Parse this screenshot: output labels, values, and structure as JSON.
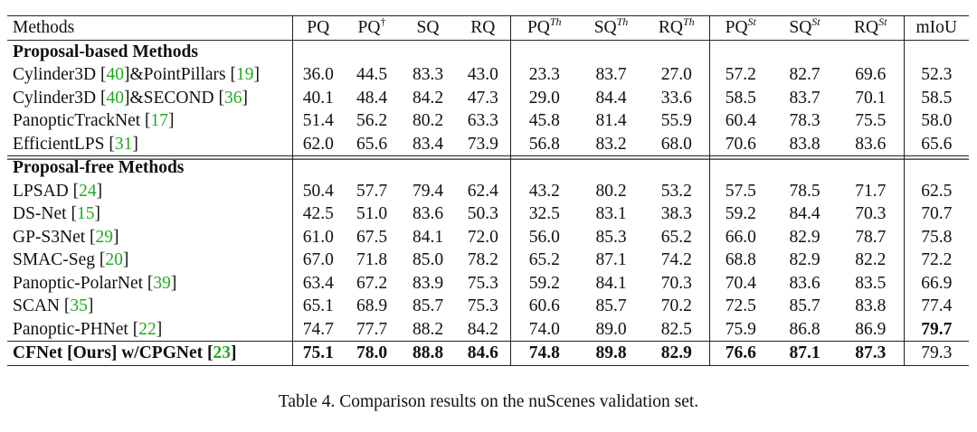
{
  "table": {
    "columns": [
      {
        "base": "Methods",
        "sup": ""
      },
      {
        "base": "PQ",
        "sup": ""
      },
      {
        "base": "PQ",
        "sup": "†"
      },
      {
        "base": "SQ",
        "sup": ""
      },
      {
        "base": "RQ",
        "sup": ""
      },
      {
        "base": "PQ",
        "sup": "Th"
      },
      {
        "base": "SQ",
        "sup": "Th"
      },
      {
        "base": "RQ",
        "sup": "Th"
      },
      {
        "base": "PQ",
        "sup": "St"
      },
      {
        "base": "SQ",
        "sup": "St"
      },
      {
        "base": "RQ",
        "sup": "St"
      },
      {
        "base": "mIoU",
        "sup": ""
      }
    ],
    "sections": [
      {
        "title": "Proposal-based Methods",
        "rows": [
          {
            "method": "Cylinder3D [",
            "cites": [
              "40",
              "19"
            ],
            "method_mid": "]&PointPillars [",
            "method_end": "]",
            "values": [
              "36.0",
              "44.5",
              "83.3",
              "43.0",
              "23.3",
              "83.7",
              "27.0",
              "57.2",
              "82.7",
              "69.6",
              "52.3"
            ]
          },
          {
            "method": "Cylinder3D [",
            "cites": [
              "40",
              "36"
            ],
            "method_mid": "]&SECOND [",
            "method_end": "]",
            "values": [
              "40.1",
              "48.4",
              "84.2",
              "47.3",
              "29.0",
              "84.4",
              "33.6",
              "58.5",
              "83.7",
              "70.1",
              "58.5"
            ]
          },
          {
            "method": "PanopticTrackNet [",
            "cites": [
              "17"
            ],
            "method_mid": "",
            "method_end": "]",
            "values": [
              "51.4",
              "56.2",
              "80.2",
              "63.3",
              "45.8",
              "81.4",
              "55.9",
              "60.4",
              "78.3",
              "75.5",
              "58.0"
            ]
          },
          {
            "method": "EfficientLPS [",
            "cites": [
              "31"
            ],
            "method_mid": "",
            "method_end": "]",
            "values": [
              "62.0",
              "65.6",
              "83.4",
              "73.9",
              "56.8",
              "83.2",
              "68.0",
              "70.6",
              "83.8",
              "83.6",
              "65.6"
            ]
          }
        ]
      },
      {
        "title": "Proposal-free Methods",
        "rows": [
          {
            "method": "LPSAD [",
            "cites": [
              "24"
            ],
            "method_mid": "",
            "method_end": "]",
            "values": [
              "50.4",
              "57.7",
              "79.4",
              "62.4",
              "43.2",
              "80.2",
              "53.2",
              "57.5",
              "78.5",
              "71.7",
              "62.5"
            ]
          },
          {
            "method": "DS-Net [",
            "cites": [
              "15"
            ],
            "method_mid": "",
            "method_end": "]",
            "values": [
              "42.5",
              "51.0",
              "83.6",
              "50.3",
              "32.5",
              "83.1",
              "38.3",
              "59.2",
              "84.4",
              "70.3",
              "70.7"
            ]
          },
          {
            "method": "GP-S3Net [",
            "cites": [
              "29"
            ],
            "method_mid": "",
            "method_end": "]",
            "values": [
              "61.0",
              "67.5",
              "84.1",
              "72.0",
              "56.0",
              "85.3",
              "65.2",
              "66.0",
              "82.9",
              "78.7",
              "75.8"
            ]
          },
          {
            "method": "SMAC-Seg [",
            "cites": [
              "20"
            ],
            "method_mid": "",
            "method_end": "]",
            "values": [
              "67.0",
              "71.8",
              "85.0",
              "78.2",
              "65.2",
              "87.1",
              "74.2",
              "68.8",
              "82.9",
              "82.2",
              "72.2"
            ]
          },
          {
            "method": "Panoptic-PolarNet [",
            "cites": [
              "39"
            ],
            "method_mid": "",
            "method_end": "]",
            "values": [
              "63.4",
              "67.2",
              "83.9",
              "75.3",
              "59.2",
              "84.1",
              "70.3",
              "70.4",
              "83.6",
              "83.5",
              "66.9"
            ]
          },
          {
            "method": "SCAN [",
            "cites": [
              "35"
            ],
            "method_mid": "",
            "method_end": "]",
            "values": [
              "65.1",
              "68.9",
              "85.7",
              "75.3",
              "60.6",
              "85.7",
              "70.2",
              "72.5",
              "85.7",
              "83.8",
              "77.4"
            ]
          },
          {
            "method": "Panoptic-PHNet [",
            "cites": [
              "22"
            ],
            "method_mid": "",
            "method_end": "]",
            "values": [
              "74.7",
              "77.7",
              "88.2",
              "84.2",
              "74.0",
              "89.0",
              "82.5",
              "75.9",
              "86.8",
              "86.9",
              "79.7"
            ],
            "bold_cols": [
              10
            ]
          }
        ]
      }
    ],
    "ours": {
      "method": "CFNet [Ours] w/CPGNet [",
      "cites": [
        "23"
      ],
      "method_end": "]",
      "values": [
        "75.1",
        "78.0",
        "88.8",
        "84.6",
        "74.8",
        "89.8",
        "82.9",
        "76.6",
        "87.1",
        "87.3",
        "79.3"
      ],
      "bold_cols": [
        0,
        1,
        2,
        3,
        4,
        5,
        6,
        7,
        8,
        9
      ]
    }
  },
  "caption": "Table 4. Comparison results on the nuScenes validation set.",
  "colors": {
    "citation": "#1faa1f",
    "text": "#111111"
  }
}
